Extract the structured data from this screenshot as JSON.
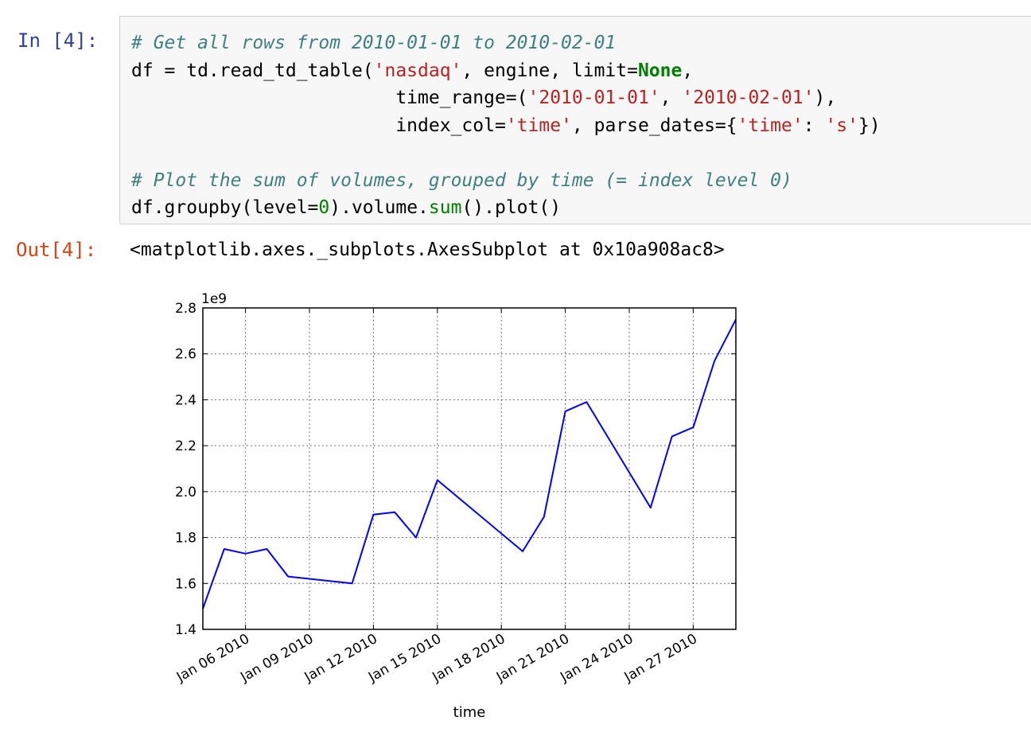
{
  "cell": {
    "in_prompt": "In [4]:",
    "out_prompt": "Out[4]:",
    "code_lines": [
      [
        {
          "t": "# Get all rows from 2010-01-01 to 2010-02-01",
          "c": "comment"
        }
      ],
      [
        {
          "t": "df = td.read_td_table(",
          "c": ""
        },
        {
          "t": "'nasdaq'",
          "c": "string"
        },
        {
          "t": ", engine, limit=",
          "c": ""
        },
        {
          "t": "None",
          "c": "kw"
        },
        {
          "t": ",",
          "c": ""
        }
      ],
      [
        {
          "t": "                        time_range=(",
          "c": ""
        },
        {
          "t": "'2010-01-01'",
          "c": "string"
        },
        {
          "t": ", ",
          "c": ""
        },
        {
          "t": "'2010-02-01'",
          "c": "string"
        },
        {
          "t": "),",
          "c": ""
        }
      ],
      [
        {
          "t": "                        index_col=",
          "c": ""
        },
        {
          "t": "'time'",
          "c": "string"
        },
        {
          "t": ", parse_dates={",
          "c": ""
        },
        {
          "t": "'time'",
          "c": "string"
        },
        {
          "t": ": ",
          "c": ""
        },
        {
          "t": "'s'",
          "c": "string"
        },
        {
          "t": "})",
          "c": ""
        }
      ],
      [
        {
          "t": "",
          "c": ""
        }
      ],
      [
        {
          "t": "# Plot the sum of volumes, grouped by time (= index level 0)",
          "c": "comment"
        }
      ],
      [
        {
          "t": "df.groupby(level=",
          "c": ""
        },
        {
          "t": "0",
          "c": "num"
        },
        {
          "t": ").volume.",
          "c": ""
        },
        {
          "t": "sum",
          "c": "builtin"
        },
        {
          "t": "().plot()",
          "c": ""
        }
      ]
    ],
    "output_text": "<matplotlib.axes._subplots.AxesSubplot at 0x10a908ac8>"
  },
  "chart_data": {
    "type": "line",
    "title": "",
    "xlabel": "time",
    "ylabel": "",
    "offset_label": "1e9",
    "x_range": [
      "2010-01-04",
      "2010-01-29"
    ],
    "ylim": [
      1.4,
      2.8
    ],
    "y_ticks": [
      1.4,
      1.6,
      1.8,
      2.0,
      2.2,
      2.4,
      2.6,
      2.8
    ],
    "x_ticks": [
      {
        "date": "2010-01-06",
        "label": "Jan 06 2010"
      },
      {
        "date": "2010-01-09",
        "label": "Jan 09 2010"
      },
      {
        "date": "2010-01-12",
        "label": "Jan 12 2010"
      },
      {
        "date": "2010-01-15",
        "label": "Jan 15 2010"
      },
      {
        "date": "2010-01-18",
        "label": "Jan 18 2010"
      },
      {
        "date": "2010-01-21",
        "label": "Jan 21 2010"
      },
      {
        "date": "2010-01-24",
        "label": "Jan 24 2010"
      },
      {
        "date": "2010-01-27",
        "label": "Jan 27 2010"
      }
    ],
    "grid": true,
    "line_color": "#0000ff",
    "series": [
      {
        "x": [
          "2010-01-04",
          "2010-01-05",
          "2010-01-06",
          "2010-01-07",
          "2010-01-08",
          "2010-01-11",
          "2010-01-12",
          "2010-01-13",
          "2010-01-14",
          "2010-01-15",
          "2010-01-19",
          "2010-01-20",
          "2010-01-21",
          "2010-01-22",
          "2010-01-25",
          "2010-01-26",
          "2010-01-27",
          "2010-01-28",
          "2010-01-29"
        ],
        "values": [
          1.49,
          1.75,
          1.73,
          1.75,
          1.63,
          1.6,
          1.9,
          1.91,
          1.8,
          2.05,
          1.74,
          1.89,
          2.35,
          2.39,
          1.93,
          2.24,
          2.28,
          2.57,
          2.75
        ]
      }
    ]
  }
}
